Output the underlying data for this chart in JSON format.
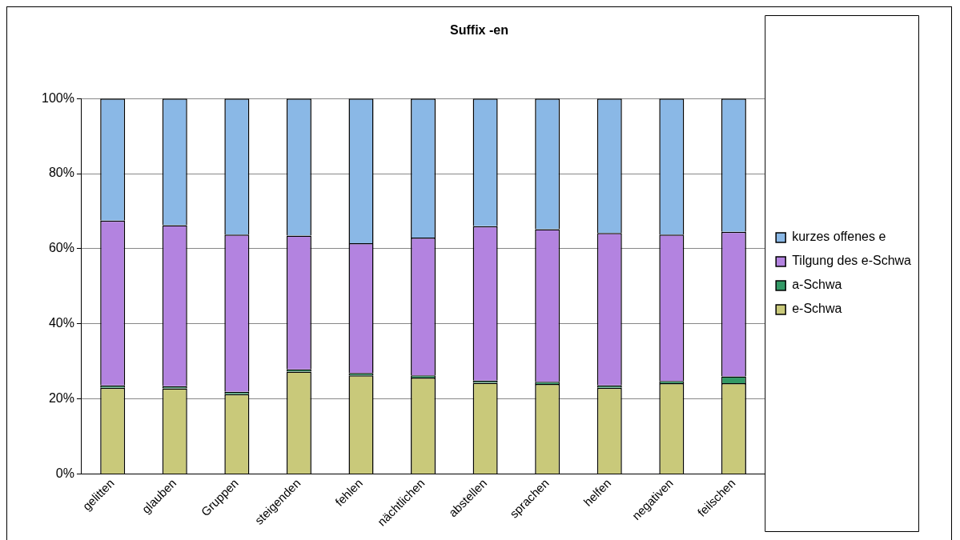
{
  "chart_data": {
    "type": "bar",
    "title": "Suffix -en",
    "stacked": true,
    "categories": [
      "gelitten",
      "glauben",
      "Gruppen",
      "steigenden",
      "fehlen",
      "nächtlichen",
      "abstellen",
      "sprachen",
      "helfen",
      "negativen",
      "feilschen"
    ],
    "series": [
      {
        "name": "e-Schwa",
        "color": "#c9c97a",
        "values": [
          23,
          22.8,
          21.3,
          27.3,
          26.3,
          25.7,
          24.3,
          24,
          23,
          24.2,
          24.2
        ]
      },
      {
        "name": "a-Schwa",
        "color": "#339966",
        "values": [
          0.6,
          0.6,
          0.6,
          0.6,
          0.6,
          0.6,
          0.6,
          0.6,
          0.6,
          0.6,
          1.8
        ]
      },
      {
        "name": "Tilgung des e-Schwa",
        "color": "#b383e0",
        "values": [
          43.9,
          42.9,
          41.9,
          35.6,
          34.6,
          36.7,
          41.1,
          40.6,
          40.6,
          39,
          38.5
        ]
      },
      {
        "name": "kurzes offenes e",
        "color": "#8ab8e6",
        "values": [
          32.5,
          33.7,
          36.2,
          36.5,
          38.5,
          37,
          34,
          34.8,
          35.8,
          36.2,
          35.5
        ]
      }
    ],
    "ylim": [
      0,
      100
    ],
    "yticks": [
      {
        "value": 0,
        "label": "0%"
      },
      {
        "value": 20,
        "label": "20%"
      },
      {
        "value": 40,
        "label": "40%"
      },
      {
        "value": 60,
        "label": "60%"
      },
      {
        "value": 80,
        "label": "80%"
      },
      {
        "value": 100,
        "label": "100%"
      }
    ],
    "grid": "y",
    "legend": "right"
  }
}
